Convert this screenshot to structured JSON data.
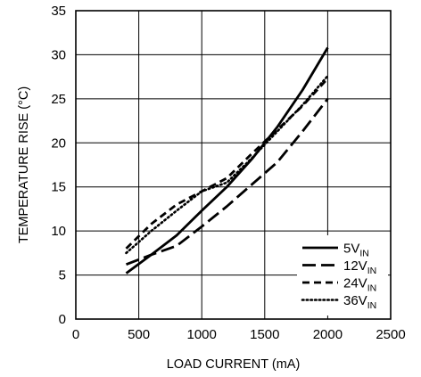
{
  "chart_data": {
    "type": "line",
    "title": "",
    "xlabel": "LOAD CURRENT (mA)",
    "ylabel": "TEMPERATURE RISE (°C)",
    "xlim": [
      0,
      2500
    ],
    "ylim": [
      0,
      35
    ],
    "xticks": [
      0,
      500,
      1000,
      1500,
      2000,
      2500
    ],
    "yticks": [
      0,
      5,
      10,
      15,
      20,
      25,
      30,
      35
    ],
    "grid": true,
    "legend_position": "bottom-right",
    "series": [
      {
        "name": "5V",
        "subscript": "IN",
        "style": "solid",
        "color": "#000000",
        "x": [
          400,
          600,
          800,
          1000,
          1200,
          1400,
          1600,
          1800,
          2000
        ],
        "y": [
          5.2,
          7.3,
          9.5,
          12.3,
          15.0,
          18.2,
          21.8,
          26.0,
          30.8
        ]
      },
      {
        "name": "12V",
        "subscript": "IN",
        "style": "longdash",
        "color": "#000000",
        "x": [
          400,
          600,
          800,
          1000,
          1200,
          1400,
          1600,
          1800,
          2000
        ],
        "y": [
          6.2,
          7.3,
          8.3,
          10.5,
          12.8,
          15.3,
          17.8,
          21.3,
          25.0
        ]
      },
      {
        "name": "24V",
        "subscript": "IN",
        "style": "shortdash",
        "color": "#000000",
        "x": [
          400,
          600,
          800,
          1000,
          1200,
          1400,
          1600,
          1800,
          2000
        ],
        "y": [
          8.0,
          10.8,
          13.0,
          14.5,
          16.0,
          18.8,
          21.5,
          24.2,
          27.3
        ]
      },
      {
        "name": "36V",
        "subscript": "IN",
        "style": "dotted",
        "color": "#000000",
        "x": [
          400,
          600,
          800,
          1000,
          1200,
          1400,
          1600,
          1800,
          2000
        ],
        "y": [
          7.5,
          10.0,
          12.3,
          14.5,
          15.5,
          18.3,
          21.3,
          24.3,
          27.6
        ]
      }
    ]
  }
}
